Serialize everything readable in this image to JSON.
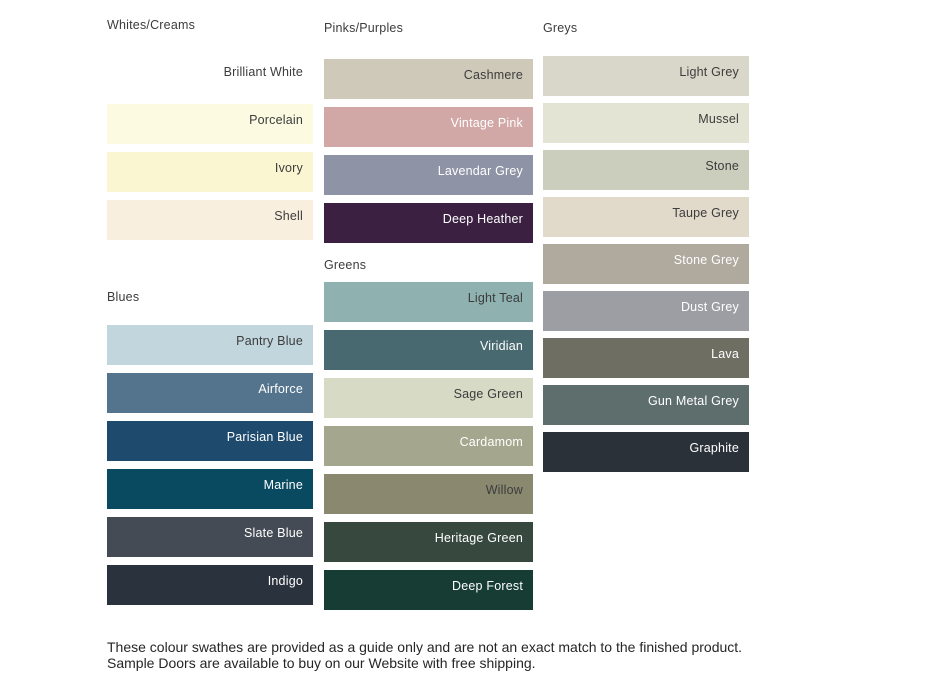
{
  "footer": {
    "text": "These colour swathes are provided as a guide only and are not an exact match to the finished product.  Sample Doors are available to buy on our Website with free shipping."
  },
  "columns": [
    {
      "sections": [
        {
          "title": "Whites/Creams",
          "swatches": [
            {
              "label": "Brilliant White",
              "color": "#FFFFFF",
              "text_color": "#3C3C3C"
            },
            {
              "label": "Porcelain",
              "color": "#FCFAE1",
              "text_color": "#3C3C3C"
            },
            {
              "label": "Ivory",
              "color": "#FBF6D2",
              "text_color": "#3C3C3C"
            },
            {
              "label": "Shell",
              "color": "#F8EFDF",
              "text_color": "#3C3C3C"
            }
          ]
        },
        {
          "title": "Blues",
          "swatches": [
            {
              "label": "Pantry Blue",
              "color": "#C2D6DD",
              "text_color": "#3C3C3C"
            },
            {
              "label": "Airforce",
              "color": "#54748E",
              "text_color": "#FFFFFF"
            },
            {
              "label": "Parisian Blue",
              "color": "#1D4A6D",
              "text_color": "#FFFFFF"
            },
            {
              "label": "Marine",
              "color": "#0A4A60",
              "text_color": "#FFFFFF"
            },
            {
              "label": "Slate Blue",
              "color": "#444B55",
              "text_color": "#FFFFFF"
            },
            {
              "label": "Indigo",
              "color": "#2A323E",
              "text_color": "#FFFFFF"
            }
          ]
        }
      ]
    },
    {
      "sections": [
        {
          "title": "Pinks/Purples",
          "swatches": [
            {
              "label": "Cashmere",
              "color": "#CFC9B9",
              "text_color": "#3C3C3C"
            },
            {
              "label": "Vintage Pink",
              "color": "#D2A8A6",
              "text_color": "#FFFFFF"
            },
            {
              "label": "Lavendar Grey",
              "color": "#8E93A5",
              "text_color": "#FFFFFF"
            },
            {
              "label": "Deep Heather",
              "color": "#3B2042",
              "text_color": "#FFFFFF"
            }
          ]
        },
        {
          "title": "Greens",
          "swatches": [
            {
              "label": "Light Teal",
              "color": "#8FB2B1",
              "text_color": "#3C3C3C"
            },
            {
              "label": "Viridian",
              "color": "#48696F",
              "text_color": "#FFFFFF"
            },
            {
              "label": "Sage Green",
              "color": "#D7DAC5",
              "text_color": "#3C3C3C"
            },
            {
              "label": "Cardamom",
              "color": "#A4A78D",
              "text_color": "#FFFFFF"
            },
            {
              "label": "Willow",
              "color": "#8B8870",
              "text_color": "#3C3C3C"
            },
            {
              "label": "Heritage Green",
              "color": "#37493E",
              "text_color": "#FFFFFF"
            },
            {
              "label": "Deep Forest",
              "color": "#163C34",
              "text_color": "#FFFFFF"
            }
          ]
        }
      ]
    },
    {
      "sections": [
        {
          "title": "Greys",
          "swatches": [
            {
              "label": "Light Grey",
              "color": "#D9D7CA",
              "text_color": "#3C3C3C"
            },
            {
              "label": "Mussel",
              "color": "#E3E4D3",
              "text_color": "#3C3C3C"
            },
            {
              "label": "Stone",
              "color": "#CBCDBD",
              "text_color": "#3C3C3C"
            },
            {
              "label": "Taupe Grey",
              "color": "#E1DACB",
              "text_color": "#3C3C3C"
            },
            {
              "label": "Stone Grey",
              "color": "#AFA99E",
              "text_color": "#FFFFFF"
            },
            {
              "label": "Dust Grey",
              "color": "#9C9EA4",
              "text_color": "#FFFFFF"
            },
            {
              "label": "Lava",
              "color": "#6F6E62",
              "text_color": "#FFFFFF"
            },
            {
              "label": "Gun Metal Grey",
              "color": "#5D6E6C",
              "text_color": "#FFFFFF"
            },
            {
              "label": "Graphite",
              "color": "#2A3138",
              "text_color": "#FFFFFF"
            }
          ]
        }
      ]
    }
  ]
}
